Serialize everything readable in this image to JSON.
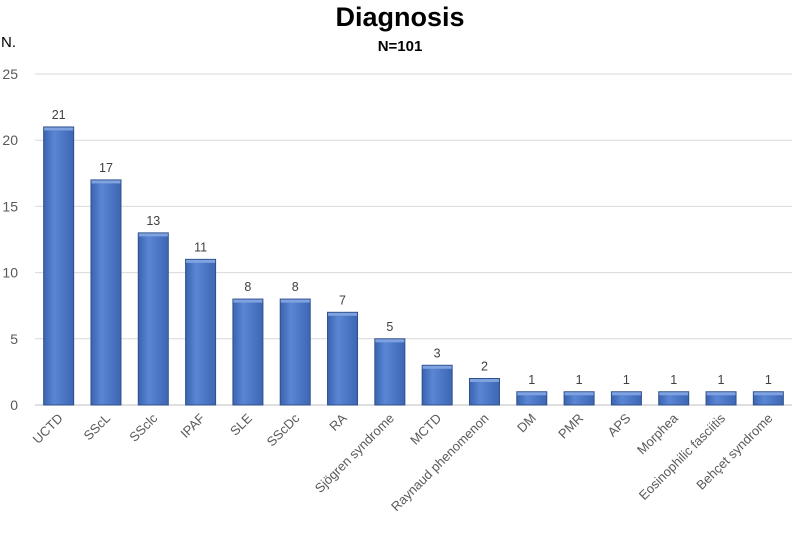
{
  "chart_data": {
    "type": "bar",
    "title": "Diagnosis",
    "subtitle": "N=101",
    "ylabel": "N.",
    "xlabel": "",
    "ylim": [
      0,
      25
    ],
    "yticks": [
      0,
      5,
      10,
      15,
      20,
      25
    ],
    "grid": true,
    "bar_color": "#4472C4",
    "categories": [
      "UCTD",
      "SScL",
      "SSclc",
      "IPAF",
      "SLE",
      "SScDc",
      "RA",
      "Sjögren syndrome",
      "MCTD",
      "Raynaud phenomenon",
      "DM",
      "PMR",
      "APS",
      "Morphea",
      "Eosinophilic fasciitis",
      "Behçet syndrome"
    ],
    "values": [
      21,
      17,
      13,
      11,
      8,
      8,
      7,
      5,
      3,
      2,
      1,
      1,
      1,
      1,
      1,
      1
    ]
  }
}
